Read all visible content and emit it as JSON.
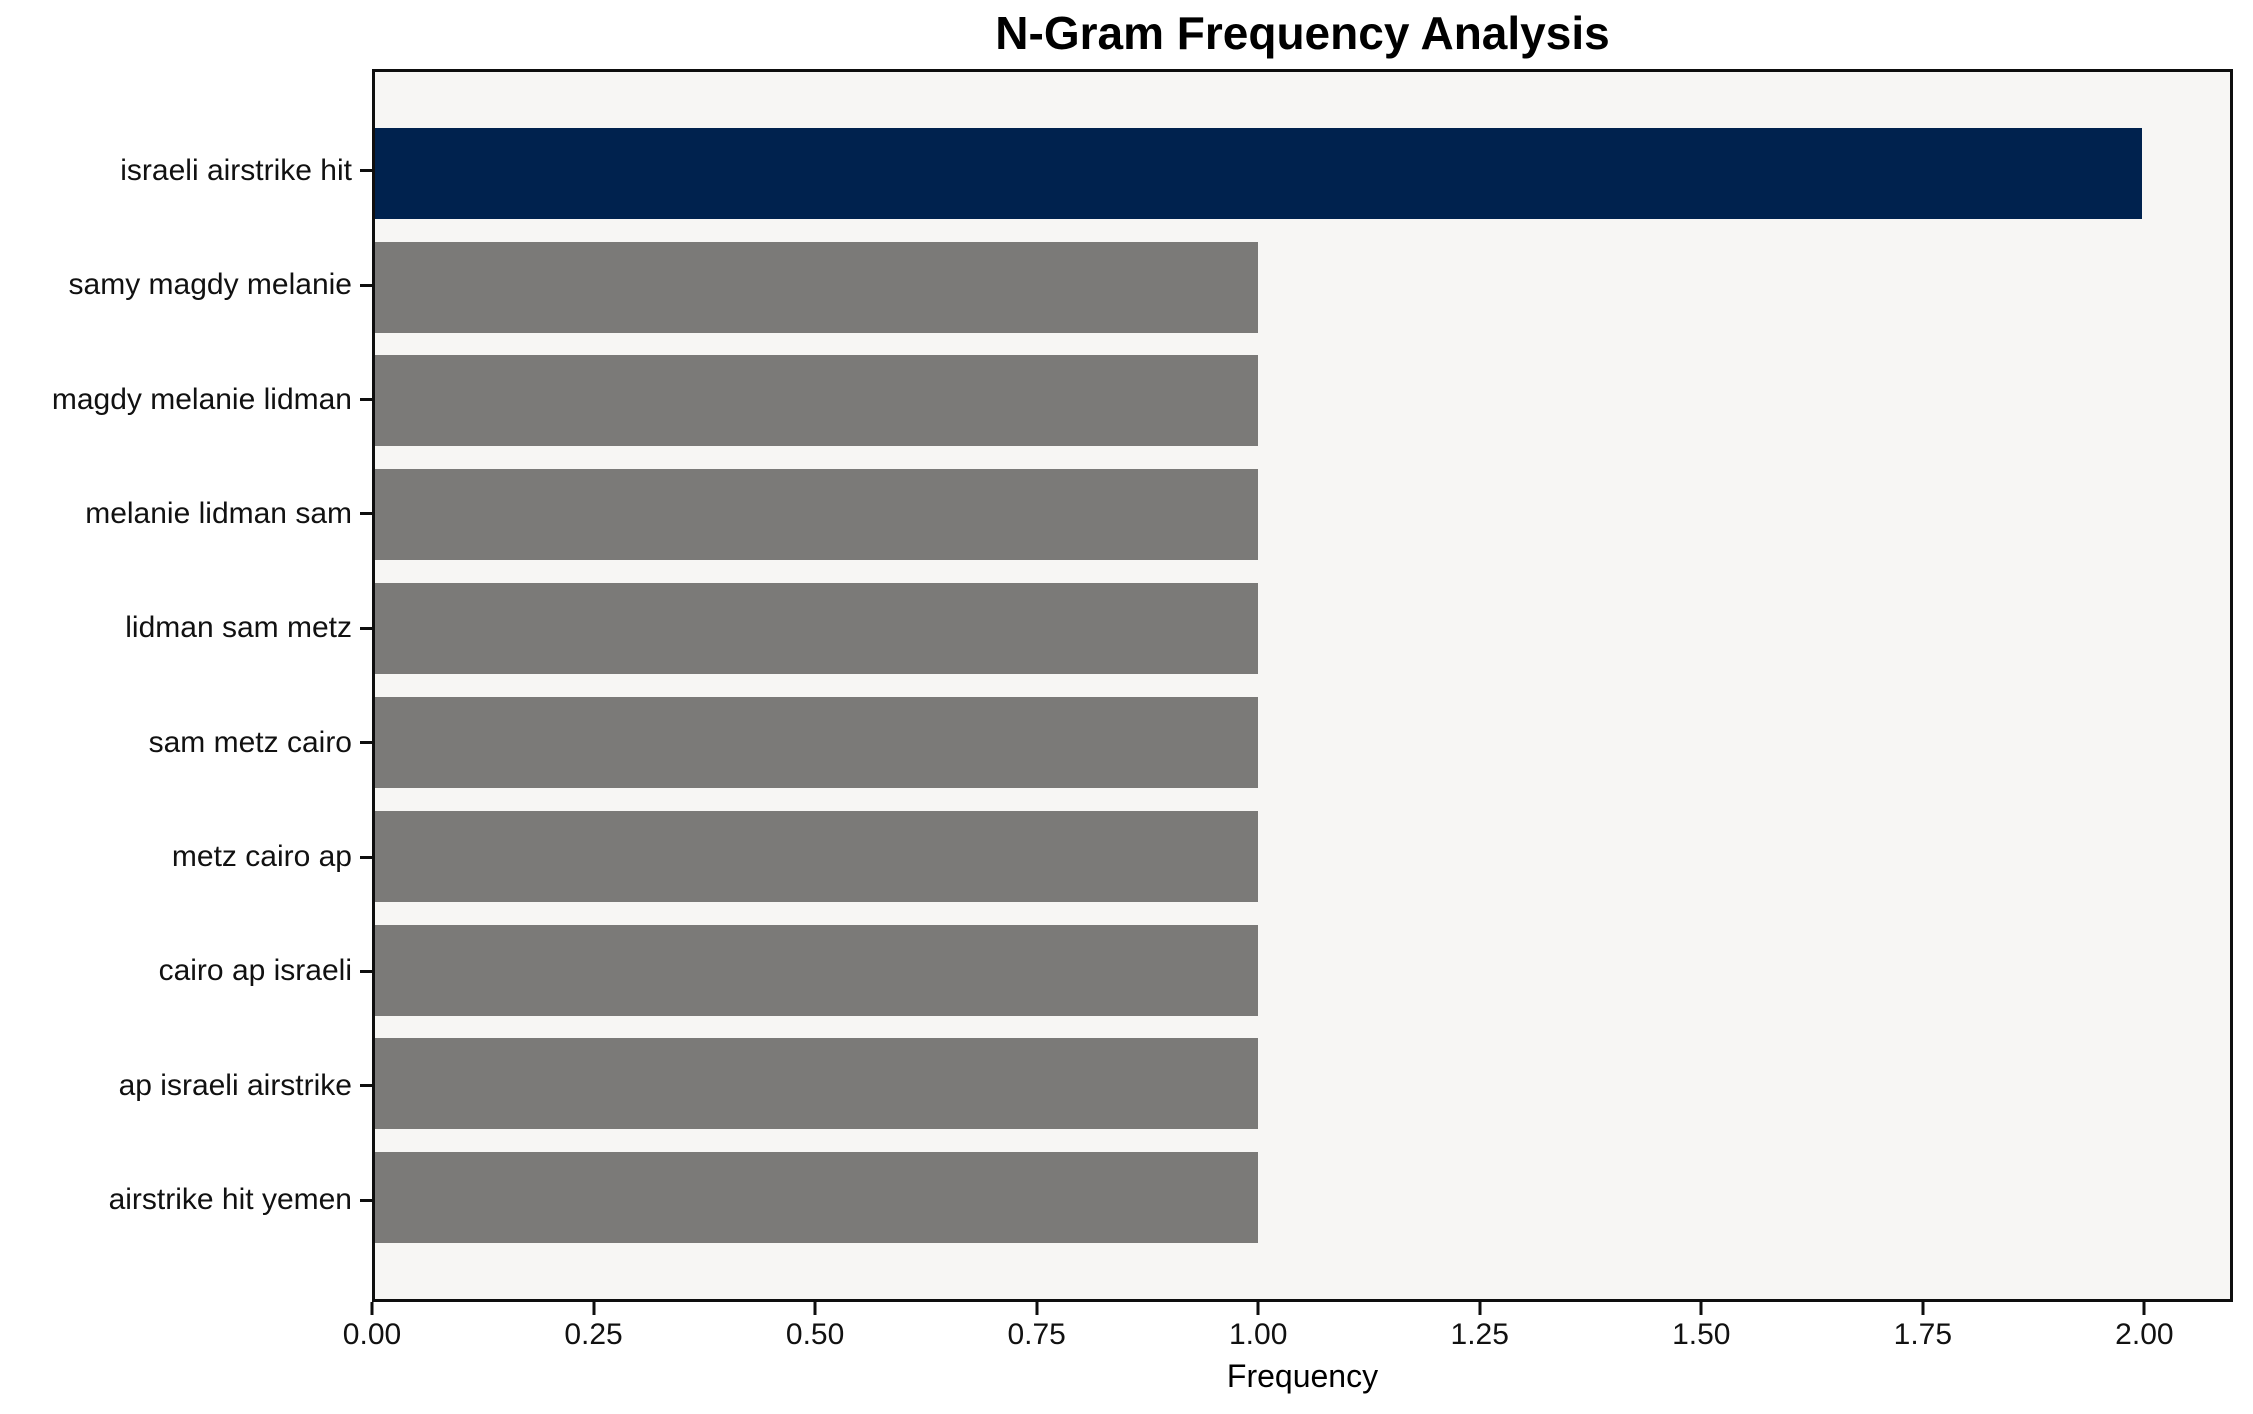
{
  "chart_data": {
    "type": "bar",
    "orientation": "horizontal",
    "title": "N-Gram Frequency Analysis",
    "xlabel": "Frequency",
    "ylabel": "",
    "categories": [
      "israeli airstrike hit",
      "samy magdy melanie",
      "magdy melanie lidman",
      "melanie lidman sam",
      "lidman sam metz",
      "sam metz cairo",
      "metz cairo ap",
      "cairo ap israeli",
      "ap israeli airstrike",
      "airstrike hit yemen"
    ],
    "values": [
      2,
      1,
      1,
      1,
      1,
      1,
      1,
      1,
      1,
      1
    ],
    "xlim": [
      0,
      2.1
    ],
    "x_tick_values": [
      0,
      0.25,
      0.5,
      0.75,
      1.0,
      1.25,
      1.5,
      1.75,
      2.0
    ],
    "x_tick_labels": [
      "0.00",
      "0.25",
      "0.50",
      "0.75",
      "1.00",
      "1.25",
      "1.50",
      "1.75",
      "2.00"
    ],
    "grid": false,
    "legend": null,
    "highlight_index": 0,
    "colors": {
      "highlight_bar": "#00224e",
      "default_bar": "#7b7a78",
      "plot_background": "#f7f6f4",
      "spine": "#0e0e0e",
      "text": "#000000"
    }
  }
}
